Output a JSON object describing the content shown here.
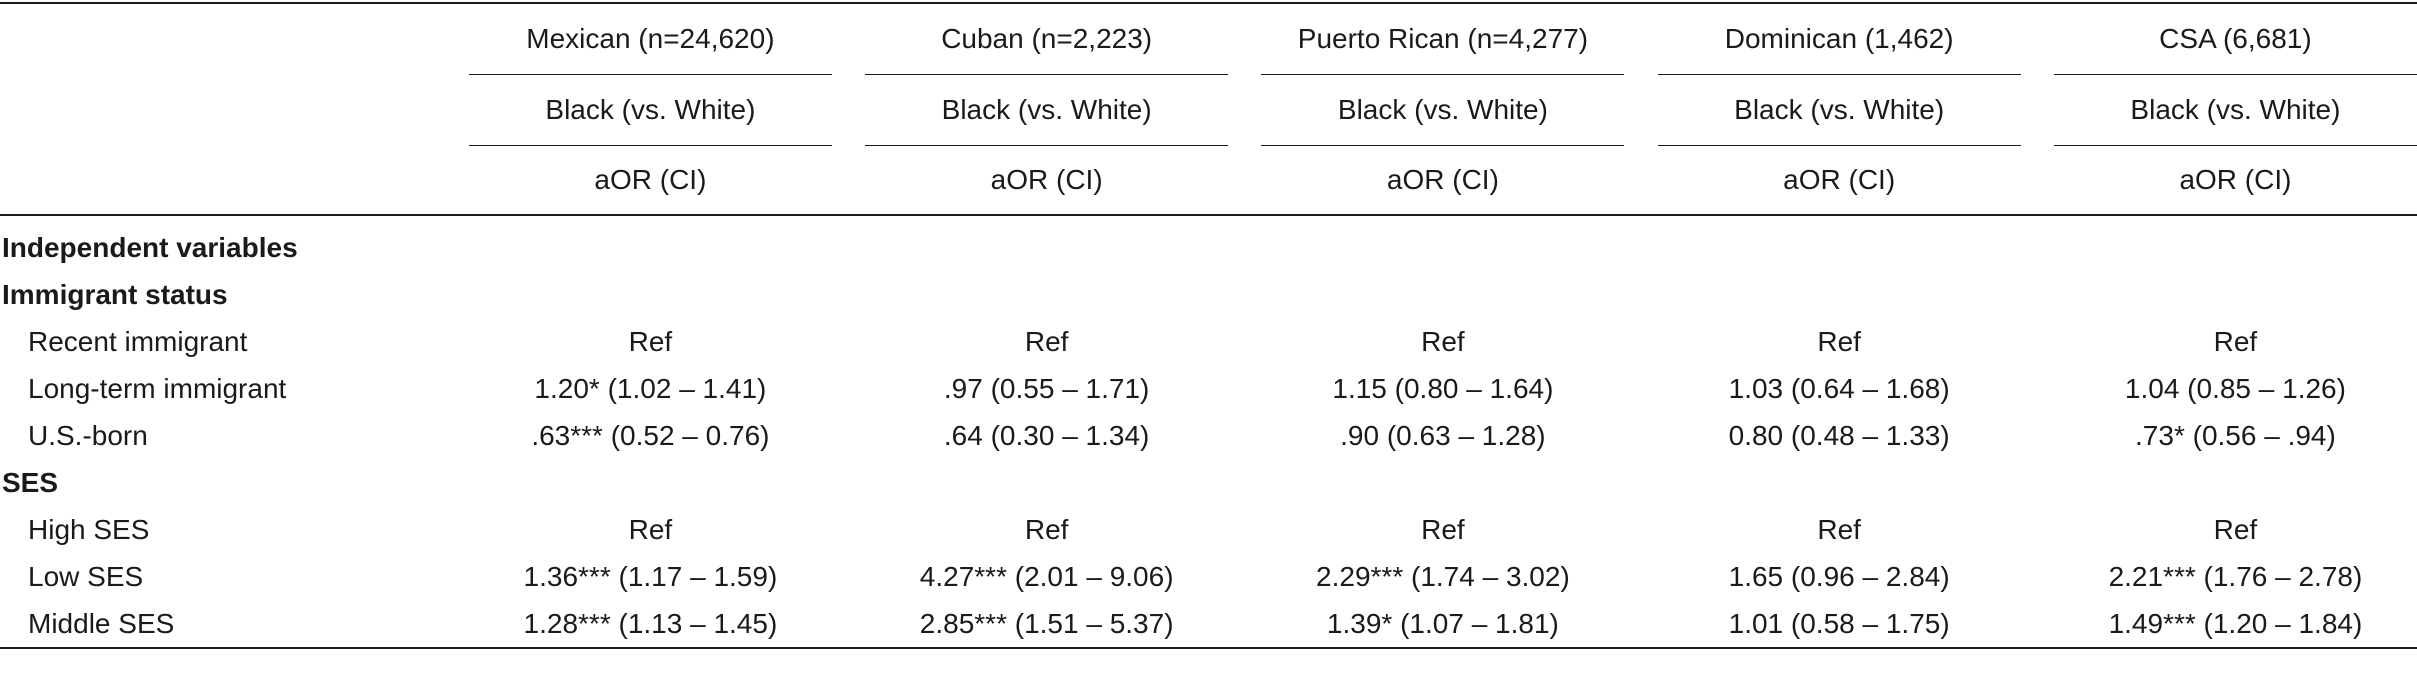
{
  "columns": [
    {
      "group": "Mexican (n=24,620)",
      "contrast": "Black (vs. White)",
      "stat": "aOR (CI)"
    },
    {
      "group": "Cuban (n=2,223)",
      "contrast": "Black (vs. White)",
      "stat": "aOR (CI)"
    },
    {
      "group": "Puerto Rican (n=4,277)",
      "contrast": "Black (vs. White)",
      "stat": "aOR (CI)"
    },
    {
      "group": "Dominican (1,462)",
      "contrast": "Black (vs. White)",
      "stat": "aOR (CI)"
    },
    {
      "group": "CSA (6,681)",
      "contrast": "Black (vs. White)",
      "stat": "aOR (CI)"
    }
  ],
  "rows": [
    {
      "label": "Independent variables",
      "values": [
        "",
        "",
        "",
        "",
        ""
      ]
    },
    {
      "label": "Immigrant status",
      "values": [
        "",
        "",
        "",
        "",
        ""
      ]
    },
    {
      "label": "Recent immigrant",
      "values": [
        "Ref",
        "Ref",
        "Ref",
        "Ref",
        "Ref"
      ]
    },
    {
      "label": "Long-term immigrant",
      "values": [
        "1.20* (1.02 – 1.41)",
        ".97 (0.55 – 1.71)",
        "1.15 (0.80 – 1.64)",
        "1.03 (0.64 – 1.68)",
        "1.04 (0.85 – 1.26)"
      ]
    },
    {
      "label": "U.S.-born",
      "values": [
        ".63*** (0.52 – 0.76)",
        ".64 (0.30 – 1.34)",
        ".90 (0.63 – 1.28)",
        "0.80 (0.48 – 1.33)",
        ".73* (0.56 – .94)"
      ]
    },
    {
      "label": "SES",
      "values": [
        "",
        "",
        "",
        "",
        ""
      ]
    },
    {
      "label": "High SES",
      "values": [
        "Ref",
        "Ref",
        "Ref",
        "Ref",
        "Ref"
      ]
    },
    {
      "label": "Low SES",
      "values": [
        "1.36*** (1.17 – 1.59)",
        "4.27*** (2.01 – 9.06)",
        "2.29*** (1.74 – 3.02)",
        "1.65 (0.96 – 2.84)",
        "2.21*** (1.76 – 2.78)"
      ]
    },
    {
      "label": "Middle SES",
      "values": [
        "1.28*** (1.13 – 1.45)",
        "2.85*** (1.51 – 5.37)",
        "1.39* (1.07 – 1.81)",
        "1.01 (0.58 – 1.75)",
        "1.49*** (1.20 – 1.84)"
      ]
    }
  ]
}
